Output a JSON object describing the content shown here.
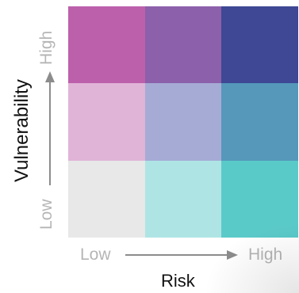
{
  "chart_data": {
    "type": "heatmap",
    "xlabel": "Risk",
    "ylabel": "Vulnerability",
    "x_ticks": [
      "Low",
      "High"
    ],
    "y_ticks": [
      "Low",
      "High"
    ],
    "x_levels": 3,
    "y_levels": 3,
    "cells": [
      [
        {
          "color": "#bd60ab"
        },
        {
          "color": "#8c60aa"
        },
        {
          "color": "#3e4894"
        }
      ],
      [
        {
          "color": "#e0b4d7"
        },
        {
          "color": "#a6abd5"
        },
        {
          "color": "#5598ba"
        }
      ],
      [
        {
          "color": "#e8e8e8"
        },
        {
          "color": "#aee5e4"
        },
        {
          "color": "#5acac9"
        }
      ]
    ],
    "arrow_color": "#8c8c8c",
    "tick_color": "#b5b5b5"
  }
}
